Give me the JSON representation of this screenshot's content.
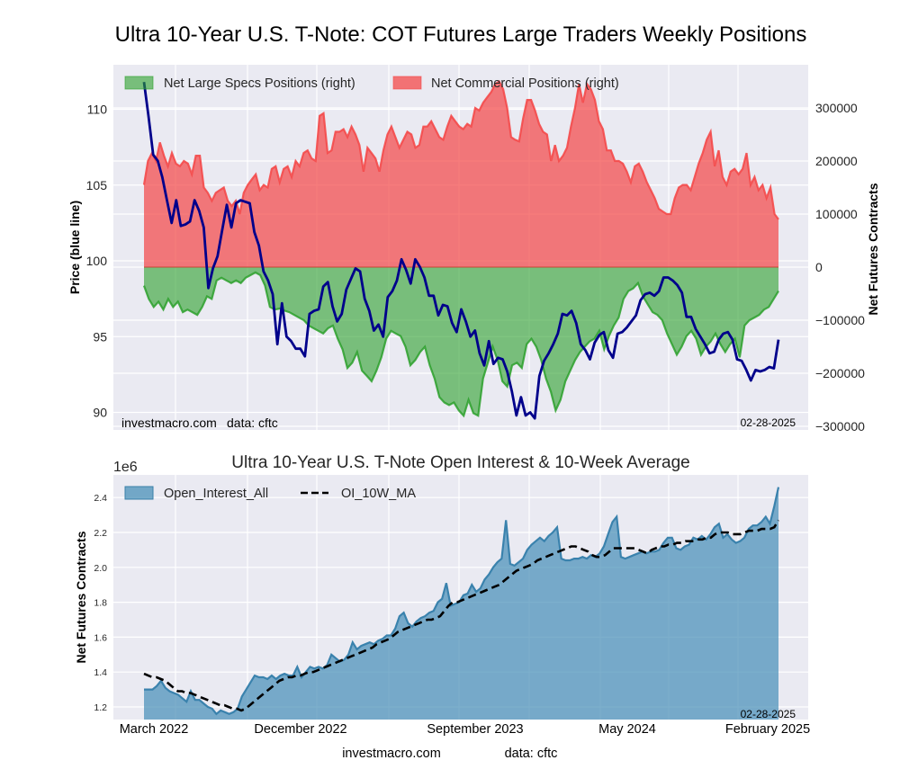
{
  "figure": {
    "footer_left": "investmacro.com",
    "footer_right": "data: cftc"
  },
  "chart_data": [
    {
      "type": "area",
      "title": "Ultra 10-Year U.S. T-Note: COT Futures Large Traders Weekly Positions",
      "ylabel": "Price (blue line)",
      "ylabel_right": "Net Futures Contracts",
      "ylim": [
        89.2,
        112.3
      ],
      "ylim_right": [
        -300000,
        380000
      ],
      "yticks": [
        90,
        95,
        100,
        105,
        110
      ],
      "yticks_right": [
        -300000,
        -200000,
        -100000,
        0,
        100000,
        200000,
        300000
      ],
      "grid": true,
      "legend_position": "top-left",
      "watermark_left": "investmacro.com",
      "watermark_source": "data: cftc",
      "date_stamp": "02-28-2025",
      "colors": {
        "specs": "#2ca02c",
        "commercial": "#f44a4a",
        "price": "#00008b",
        "background": "#eaeaf2"
      },
      "series": [
        {
          "name": "Net Large Specs Positions (right)",
          "axis": "right",
          "kind": "area",
          "values": [
            -35000,
            -60000,
            -75000,
            -65000,
            -80000,
            -60000,
            -75000,
            -65000,
            -85000,
            -80000,
            -85000,
            -90000,
            -75000,
            -55000,
            -60000,
            -25000,
            -20000,
            -25000,
            -30000,
            -25000,
            -30000,
            -20000,
            -15000,
            -10000,
            -15000,
            -35000,
            -75000,
            -80000,
            -78000,
            -82000,
            -85000,
            -90000,
            -95000,
            -100000,
            -110000,
            -115000,
            -120000,
            -125000,
            -115000,
            -110000,
            -135000,
            -155000,
            -190000,
            -180000,
            -160000,
            -195000,
            -205000,
            -215000,
            -195000,
            -170000,
            -135000,
            -120000,
            -125000,
            -130000,
            -150000,
            -185000,
            -175000,
            -160000,
            -150000,
            -185000,
            -210000,
            -245000,
            -255000,
            -260000,
            -255000,
            -270000,
            -280000,
            -250000,
            -275000,
            -280000,
            -210000,
            -180000,
            -150000,
            -175000,
            -215000,
            -225000,
            -185000,
            -180000,
            -190000,
            -145000,
            -135000,
            -150000,
            -175000,
            -210000,
            -235000,
            -270000,
            -250000,
            -215000,
            -195000,
            -175000,
            -160000,
            -150000,
            -140000,
            -135000,
            -120000,
            -155000,
            -130000,
            -110000,
            -95000,
            -60000,
            -45000,
            -40000,
            -30000,
            -55000,
            -70000,
            -85000,
            -90000,
            -100000,
            -125000,
            -145000,
            -165000,
            -150000,
            -130000,
            -120000,
            -135000,
            -165000,
            -150000,
            -140000,
            -125000,
            -145000,
            -160000,
            -145000,
            -135000,
            -170000,
            -110000,
            -100000,
            -95000,
            -90000,
            -80000,
            -75000,
            -60000,
            -45000
          ]
        },
        {
          "name": "Net Commercial Positions (right)",
          "axis": "right",
          "kind": "area",
          "values": [
            155000,
            200000,
            215000,
            200000,
            235000,
            210000,
            190000,
            215000,
            195000,
            190000,
            200000,
            195000,
            175000,
            210000,
            210000,
            150000,
            140000,
            125000,
            140000,
            145000,
            150000,
            125000,
            115000,
            125000,
            100000,
            140000,
            155000,
            165000,
            175000,
            145000,
            155000,
            150000,
            185000,
            190000,
            160000,
            185000,
            190000,
            170000,
            200000,
            190000,
            215000,
            220000,
            205000,
            200000,
            285000,
            290000,
            215000,
            220000,
            255000,
            255000,
            260000,
            245000,
            265000,
            250000,
            230000,
            180000,
            225000,
            215000,
            205000,
            180000,
            220000,
            250000,
            265000,
            245000,
            225000,
            240000,
            255000,
            250000,
            225000,
            230000,
            265000,
            265000,
            275000,
            260000,
            245000,
            240000,
            265000,
            285000,
            275000,
            265000,
            260000,
            270000,
            265000,
            300000,
            295000,
            310000,
            320000,
            330000,
            345000,
            350000,
            335000,
            300000,
            245000,
            240000,
            237000,
            280000,
            315000,
            315000,
            295000,
            270000,
            255000,
            250000,
            200000,
            230000,
            200000,
            210000,
            225000,
            265000,
            300000,
            345000,
            310000,
            345000,
            335000,
            315000,
            275000,
            260000,
            220000,
            220000,
            200000,
            200000,
            195000,
            180000,
            160000,
            190000,
            195000,
            180000,
            160000,
            145000,
            130000,
            110000,
            105000,
            100000,
            100000,
            130000,
            150000,
            155000,
            155000,
            145000,
            170000,
            195000,
            215000,
            240000,
            255000,
            190000,
            220000,
            170000,
            155000,
            180000,
            185000,
            175000,
            185000,
            215000,
            155000,
            170000,
            145000,
            155000,
            130000,
            150000,
            100000,
            90000
          ]
        },
        {
          "name": "Price",
          "axis": "left",
          "kind": "line",
          "values": [
            111.8,
            109.5,
            107.0,
            106.6,
            105.5,
            104.0,
            102.5,
            104.0,
            102.3,
            102.4,
            102.6,
            104.0,
            103.3,
            102.2,
            98.2,
            99.5,
            100.3,
            102.0,
            103.7,
            102.2,
            103.8,
            104.0,
            103.9,
            103.8,
            101.9,
            101.0,
            99.3,
            98.7,
            97.8,
            94.5,
            97.2,
            95.0,
            94.7,
            94.2,
            94.2,
            93.7,
            96.5,
            96.7,
            96.8,
            98.3,
            98.6,
            97.0,
            96.0,
            96.5,
            98.1,
            98.8,
            99.5,
            99.3,
            97.5,
            96.7,
            95.4,
            95.8,
            95.0,
            97.6,
            98.0,
            98.7,
            100.1,
            99.4,
            98.5,
            100.1,
            99.6,
            98.9,
            97.7,
            97.7,
            96.4,
            97.1,
            97.0,
            95.9,
            95.3,
            96.8,
            96.0,
            95.0,
            95.4,
            93.9,
            93.1,
            94.7,
            93.2,
            93.6,
            93.5,
            92.7,
            91.4,
            89.8,
            91.0,
            89.8,
            90.0,
            89.6,
            92.4,
            93.4,
            93.9,
            94.5,
            95.2,
            96.5,
            96.4,
            96.7,
            95.9,
            94.5,
            94.1,
            93.5,
            94.6,
            95.1,
            95.3,
            94.1,
            93.6,
            95.2,
            95.3,
            95.6,
            96.0,
            96.4,
            97.4,
            97.8,
            97.9,
            97.7,
            98.0,
            98.9,
            98.9,
            98.7,
            98.4,
            97.9,
            96.3,
            96.3,
            95.5,
            95.0,
            94.5,
            93.9,
            94.0,
            94.8,
            95.2,
            95.3,
            94.8,
            93.5,
            93.4,
            92.8,
            92.1,
            92.8,
            92.7,
            92.8,
            93.0,
            92.9,
            94.8
          ]
        }
      ]
    },
    {
      "type": "area",
      "title": "Ultra 10-Year U.S. T-Note Open Interest & 10-Week Average",
      "ylabel": "Net Futures Contracts",
      "y_scale_label": "1e6",
      "ylim": [
        1.13,
        2.53
      ],
      "yticks": [
        "1.2",
        "1.4",
        "1.6",
        "1.8",
        "2.0",
        "2.2",
        "2.4"
      ],
      "xtick_labels": [
        "March 2022",
        "December 2022",
        "September 2023",
        "May 2024",
        "February 2025"
      ],
      "grid": true,
      "legend_position": "top-left",
      "date_stamp": "02-28-2025",
      "colors": {
        "open_interest": "#4a90b8",
        "ma": "#000000",
        "background": "#eaeaf2"
      },
      "series": [
        {
          "name": "Open_Interest_All",
          "kind": "area",
          "values": [
            1.3,
            1.3,
            1.3,
            1.32,
            1.35,
            1.31,
            1.29,
            1.28,
            1.27,
            1.25,
            1.23,
            1.29,
            1.24,
            1.24,
            1.22,
            1.2,
            1.19,
            1.16,
            1.18,
            1.17,
            1.16,
            1.17,
            1.19,
            1.26,
            1.3,
            1.34,
            1.38,
            1.37,
            1.37,
            1.36,
            1.38,
            1.36,
            1.38,
            1.39,
            1.38,
            1.38,
            1.43,
            1.37,
            1.4,
            1.43,
            1.42,
            1.43,
            1.42,
            1.44,
            1.5,
            1.48,
            1.46,
            1.47,
            1.5,
            1.57,
            1.53,
            1.55,
            1.56,
            1.57,
            1.56,
            1.58,
            1.59,
            1.61,
            1.61,
            1.65,
            1.72,
            1.74,
            1.68,
            1.66,
            1.69,
            1.71,
            1.72,
            1.74,
            1.75,
            1.8,
            1.82,
            1.91,
            1.78,
            1.79,
            1.8,
            1.84,
            1.85,
            1.9,
            1.86,
            1.88,
            1.93,
            1.96,
            2.0,
            2.03,
            2.05,
            2.27,
            2.02,
            2.01,
            2.03,
            2.05,
            2.1,
            2.13,
            2.15,
            2.17,
            2.15,
            2.18,
            2.2,
            2.23,
            2.05,
            2.04,
            2.04,
            2.05,
            2.05,
            2.06,
            2.05,
            2.07,
            2.06,
            2.08,
            2.12,
            2.19,
            2.26,
            2.29,
            2.06,
            2.05,
            2.06,
            2.07,
            2.08,
            2.09,
            2.08,
            2.09,
            2.09,
            2.1,
            2.14,
            2.17,
            2.17,
            2.11,
            2.1,
            2.12,
            2.13,
            2.17,
            2.16,
            2.18,
            2.16,
            2.19,
            2.23,
            2.25,
            2.17,
            2.19,
            2.16,
            2.14,
            2.15,
            2.17,
            2.22,
            2.24,
            2.24,
            2.26,
            2.29,
            2.25,
            2.35,
            2.46
          ]
        },
        {
          "name": "OI_10W_MA",
          "kind": "dashed-line",
          "values": [
            1.39,
            1.38,
            1.37,
            1.37,
            1.36,
            1.35,
            1.33,
            1.31,
            1.29,
            1.29,
            1.28,
            1.28,
            1.27,
            1.26,
            1.25,
            1.24,
            1.23,
            1.22,
            1.21,
            1.21,
            1.2,
            1.19,
            1.19,
            1.18,
            1.19,
            1.21,
            1.23,
            1.25,
            1.27,
            1.29,
            1.31,
            1.33,
            1.35,
            1.36,
            1.37,
            1.37,
            1.38,
            1.38,
            1.39,
            1.4,
            1.4,
            1.41,
            1.42,
            1.43,
            1.44,
            1.45,
            1.46,
            1.47,
            1.48,
            1.49,
            1.5,
            1.51,
            1.52,
            1.53,
            1.54,
            1.56,
            1.57,
            1.58,
            1.59,
            1.61,
            1.63,
            1.64,
            1.65,
            1.66,
            1.67,
            1.68,
            1.69,
            1.7,
            1.7,
            1.71,
            1.72,
            1.75,
            1.78,
            1.8,
            1.8,
            1.81,
            1.82,
            1.83,
            1.84,
            1.85,
            1.86,
            1.87,
            1.88,
            1.89,
            1.9,
            1.92,
            1.94,
            1.96,
            1.98,
            1.99,
            2.0,
            2.01,
            2.02,
            2.04,
            2.05,
            2.06,
            2.07,
            2.08,
            2.09,
            2.1,
            2.11,
            2.12,
            2.12,
            2.11,
            2.1,
            2.09,
            2.07,
            2.06,
            2.06,
            2.07,
            2.09,
            2.11,
            2.11,
            2.11,
            2.11,
            2.11,
            2.11,
            2.1,
            2.09,
            2.08,
            2.1,
            2.11,
            2.12,
            2.12,
            2.13,
            2.13,
            2.14,
            2.14,
            2.15,
            2.15,
            2.15,
            2.16,
            2.16,
            2.17,
            2.17,
            2.19,
            2.2,
            2.2,
            2.2,
            2.19,
            2.19,
            2.19,
            2.2,
            2.21,
            2.21,
            2.21,
            2.22,
            2.22,
            2.22,
            2.23,
            2.27
          ]
        }
      ]
    }
  ]
}
